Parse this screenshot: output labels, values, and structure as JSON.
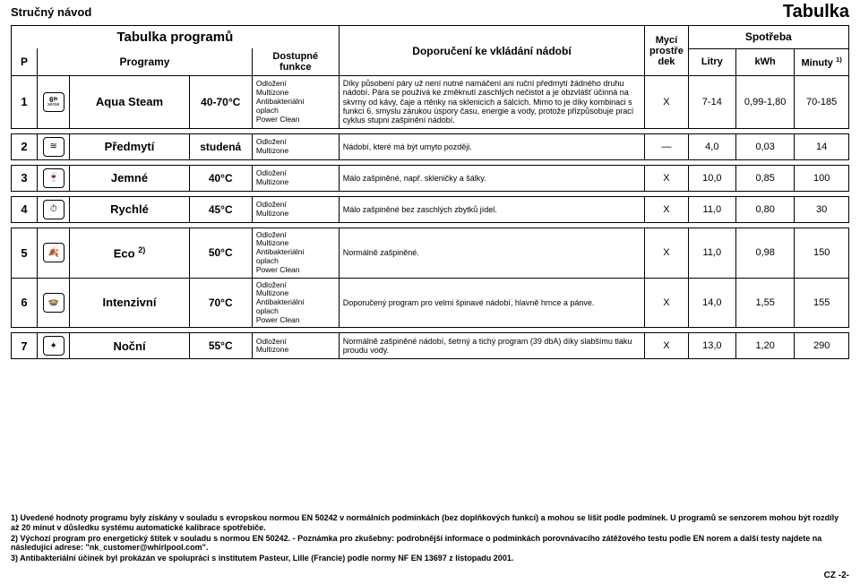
{
  "header": {
    "left": "Stručný návod",
    "right": "Tabulka"
  },
  "columns": {
    "table_programs": "Tabulka programů",
    "p": "P",
    "programs": "Programy",
    "functions": "Dostupné funkce",
    "recommendation": "Doporučení ke vkládání nádobí",
    "detergent": "Mycí prostře dek",
    "consumption": "Spotřeba",
    "litres": "Litry",
    "kwh": "kWh",
    "minutes": "Minuty",
    "minutes_sup": "1)"
  },
  "rows": [
    {
      "num": "1",
      "icon": "6ᵗʰ",
      "icon_sub": "sense",
      "name": "Aqua Steam",
      "temp": "40-70°C",
      "functions": "Odložení\nMultizone\nAntibakteriální\noplach\nPower Clean",
      "desc": "Díky působení páry už není nutné namáčení ani ruční předmytí žádného druhu nádobí. Pára se používá ke změknutí zaschlých nečistot a je obzvlášť účinná na skvrny od kávy, čaje a rtěnky na sklenicích a šálcích. Mimo to je díky kombinaci s funkcí 6. smyslu zárukou úspory času, energie a vody, protože přizpůsobuje prací cyklus stupni zašpinění nádobí.",
      "dek": "X",
      "litres": "7-14",
      "kwh": "0,99-1,80",
      "min": "70-185"
    },
    {
      "num": "2",
      "icon": "≋",
      "name": "Předmytí",
      "temp": "studená",
      "functions": "Odložení\nMultizone",
      "desc": "Nádobí, které má být umyto později.",
      "dek": "—",
      "litres": "4,0",
      "kwh": "0,03",
      "min": "14"
    },
    {
      "num": "3",
      "icon": "🍷",
      "name": "Jemné",
      "temp": "40°C",
      "functions": "Odložení\nMultizone",
      "desc": "Málo zašpiněné, např. skleničky a šálky.",
      "dek": "X",
      "litres": "10,0",
      "kwh": "0,85",
      "min": "100"
    },
    {
      "num": "4",
      "icon": "⏱",
      "name": "Rychlé",
      "temp": "45°C",
      "functions": "Odložení\nMultizone",
      "desc": "Málo zašpiněné bez zaschlých zbytků jídel.",
      "dek": "X",
      "litres": "11,0",
      "kwh": "0,80",
      "min": "30"
    },
    {
      "num": "5",
      "icon": "🍂",
      "name": "Eco",
      "name_sup": "2)",
      "temp": "50°C",
      "functions": "Odložení\nMultizone\nAntibakteriální\noplach\nPower Clean",
      "desc": "Normálně zašpiněné.",
      "dek": "X",
      "litres": "11,0",
      "kwh": "0,98",
      "min": "150"
    },
    {
      "num": "6",
      "icon": "🍲",
      "name": "Intenzivní",
      "temp": "70°C",
      "functions": "Odložení\nMultizone\nAntibakteriální\noplach\nPower Clean",
      "desc": "Doporučený program pro velmi špinavé nádobí, hlavně hrnce a pánve.",
      "dek": "X",
      "litres": "14,0",
      "kwh": "1,55",
      "min": "155"
    },
    {
      "num": "7",
      "icon": "✦",
      "name": "Noční",
      "temp": "55°C",
      "functions": "Odložení\nMultizone",
      "desc": "Normálně zašpiněné nádobí, šetrný a tichý program (39 dbA) díky slabšímu tlaku proudu vody.",
      "dek": "X",
      "litres": "13,0",
      "kwh": "1,20",
      "min": "290"
    }
  ],
  "footnotes": {
    "n1": "1) Uvedené hodnoty programu byly získány v souladu s evropskou normou EN 50242 v normálních podmínkách (bez doplňkových funkcí) a mohou se lišit podle podmínek. U programů se senzorem mohou být rozdíly až 20 minut v důsledku systému automatické kalibrace spotřebiče.",
    "n2": "2) Výchozí program pro energetický štítek v souladu s normou EN 50242. - Poznámka pro zkušebny: podrobnější informace o podmínkách porovnávacího zátěžového testu podle EN norem a další testy najdete na následující adrese: \"nk_customer@whirlpool.com\".",
    "n3": "3) Antibakteriální účinek byl prokázán ve spolupráci s institutem Pasteur, Lille (Francie) podle normy NF EN 13697 z listopadu 2001."
  },
  "page_corner": "CZ -2-"
}
